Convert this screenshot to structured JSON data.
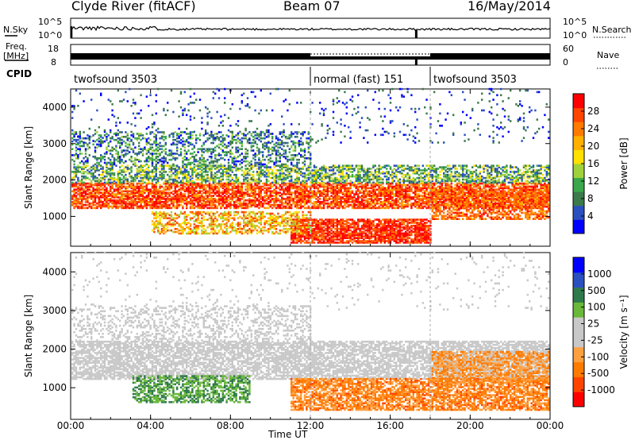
{
  "header": {
    "station": "Clyde River (fitACF)",
    "beam": "Beam 07",
    "date": "16/May/2014"
  },
  "noise_panel": {
    "left_label": "N.Sky",
    "right_label": "N.Search",
    "left_ticks": [
      "10^5",
      "10^0"
    ],
    "right_ticks": [
      "10^5",
      "10^0"
    ]
  },
  "freq_panel": {
    "left_label_line1": "Freq.",
    "left_label_line2": "[MHz]",
    "right_label": "Nave",
    "left_ticks": [
      "18",
      "8"
    ],
    "right_ticks": [
      "60",
      "0"
    ]
  },
  "cpid": {
    "label": "CPID",
    "segments": [
      {
        "name": "twofsound 3503",
        "start_hour": 0,
        "end_hour": 12
      },
      {
        "name": "normal (fast) 151",
        "start_hour": 12,
        "end_hour": 18
      },
      {
        "name": "twofsound 3503",
        "start_hour": 18,
        "end_hour": 24
      }
    ]
  },
  "colors": {
    "power_scale": [
      "#0000ff",
      "#2a4fbf",
      "#3c7a4a",
      "#3aa84a",
      "#9fd23a",
      "#ffe000",
      "#ffb000",
      "#ff7a00",
      "#ff4400",
      "#ff0000"
    ],
    "velocity_scale": [
      "#ff0000",
      "#ff4400",
      "#ff7a00",
      "#ffa040",
      "#c8c8c8",
      "#c8c8c8",
      "#6ab83a",
      "#2f7a4a",
      "#2a4fbf",
      "#0000ff"
    ]
  },
  "chart_data": [
    {
      "type": "heatmap",
      "panel": "power",
      "xlabel": "Time UT",
      "ylabel": "Slant Range [km]",
      "colorbar_label": "Power [dB]",
      "xlim": [
        0,
        24
      ],
      "ylim": [
        180,
        4500
      ],
      "x_ticks": [
        "00:00",
        "04:00",
        "08:00",
        "12:00",
        "16:00",
        "20:00",
        "00:00"
      ],
      "y_ticks": [
        1000,
        2000,
        3000,
        4000
      ],
      "colorbar_ticks": [
        4,
        8,
        12,
        16,
        20,
        24,
        28
      ],
      "colorbar_range": [
        0,
        30
      ]
    },
    {
      "type": "heatmap",
      "panel": "velocity",
      "xlabel": "Time UT",
      "ylabel": "Slant Range [km]",
      "colorbar_label": "Velocity [m s⁻¹]",
      "xlim": [
        0,
        24
      ],
      "ylim": [
        180,
        4500
      ],
      "x_ticks": [
        "00:00",
        "04:00",
        "08:00",
        "12:00",
        "16:00",
        "20:00",
        "00:00"
      ],
      "y_ticks": [
        1000,
        2000,
        3000,
        4000
      ],
      "colorbar_ticks": [
        "1000",
        "500",
        "100",
        "25",
        "-25",
        "-100",
        "-500",
        "-1000"
      ]
    }
  ],
  "footer": {
    "xlabel": "Time UT"
  }
}
